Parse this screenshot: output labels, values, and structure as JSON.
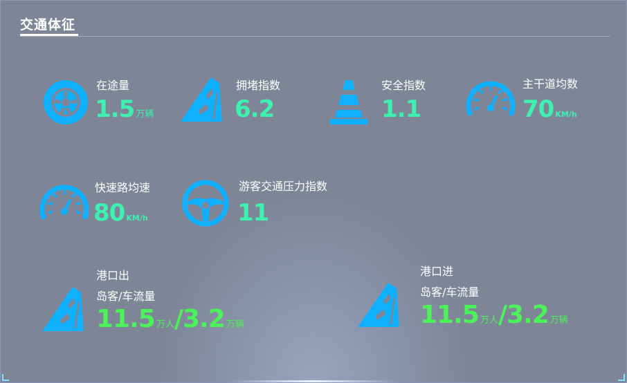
{
  "header": {
    "title": "交通体征"
  },
  "metrics": [
    {
      "label": "在途量",
      "value": "1.5",
      "unit": "万辆",
      "icon": "wheel-icon"
    },
    {
      "label": "拥堵指数",
      "value": "6.2",
      "unit": "",
      "icon": "road-icon"
    },
    {
      "label": "安全指数",
      "value": "1.1",
      "unit": "",
      "icon": "traffic-cone-icon"
    },
    {
      "label": "主干道均数",
      "value": "70",
      "unit": "KM/h",
      "icon": "speedometer-icon"
    },
    {
      "label": "快速路均速",
      "value": "80",
      "unit": "KM/h",
      "icon": "speedometer-icon"
    },
    {
      "label": "游客交通压力指数",
      "value": "11",
      "unit": "",
      "icon": "steering-wheel-icon"
    }
  ],
  "port_out": {
    "title": "港口出",
    "subtitle": "岛客/车流量",
    "value1": "11.5",
    "unit1": "万人",
    "sep": "/",
    "value2": "3.2",
    "unit2": "万辆",
    "icon": "road-icon"
  },
  "port_in": {
    "title": "港口进",
    "subtitle": "岛客/车流量",
    "value1": "11.5",
    "unit1": "万人",
    "sep": "/",
    "value2": "3.2",
    "unit2": "万辆",
    "icon": "road-icon"
  },
  "colors": {
    "icon": "#0fb0ff",
    "value": "#3df2b0",
    "port_value": "#4cf25a",
    "background": "#7e8597"
  }
}
